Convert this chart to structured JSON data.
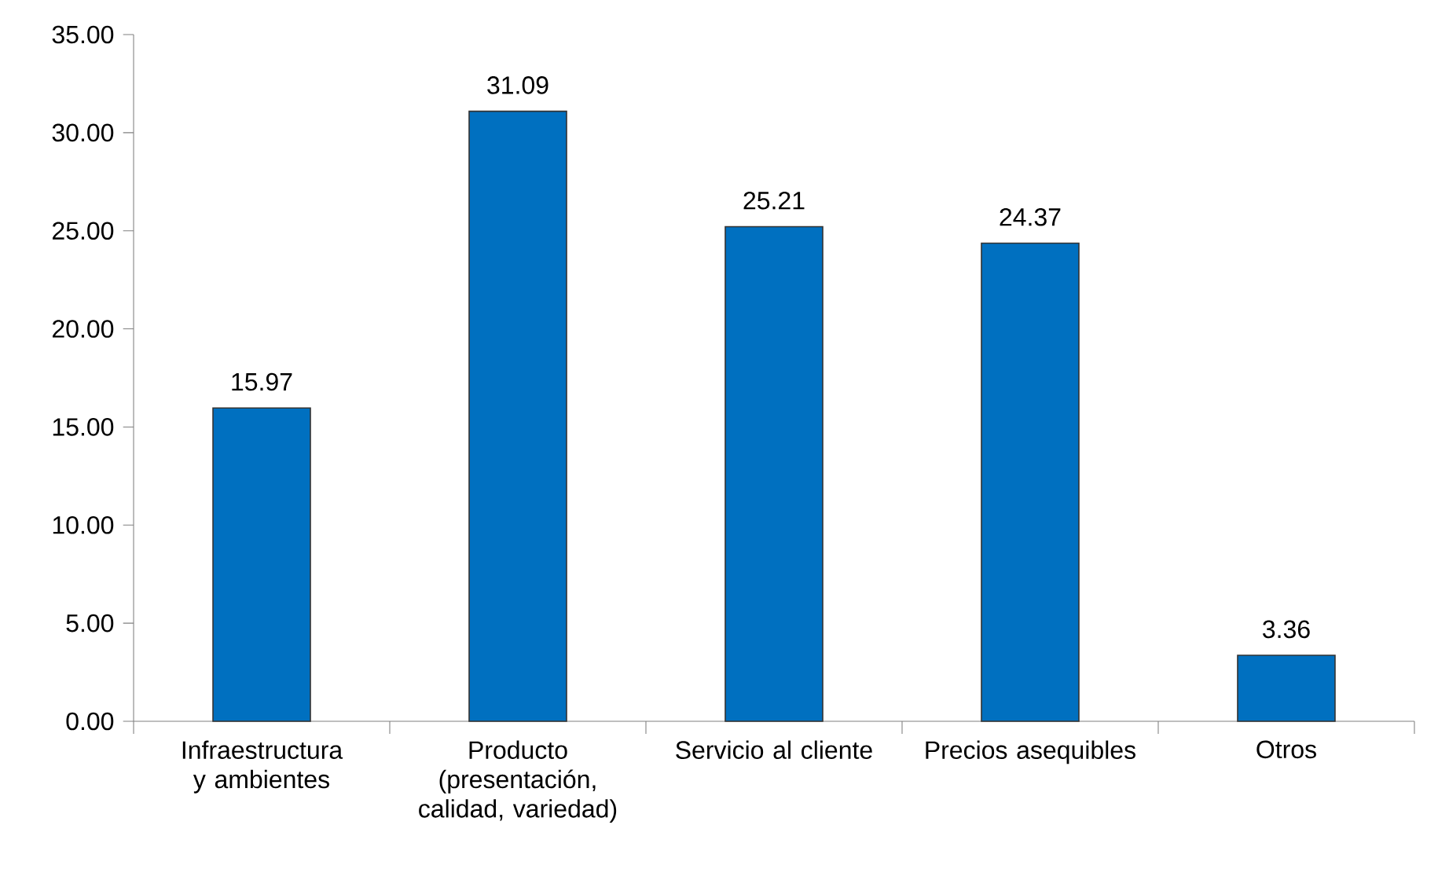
{
  "chart_data": {
    "type": "bar",
    "categories": [
      "Infraestructura y ambientes",
      "Producto (presentación, calidad, variedad)",
      "Servicio al cliente",
      "Precios asequibles",
      "Otros"
    ],
    "values": [
      15.97,
      31.09,
      25.21,
      24.37,
      3.36
    ],
    "color": "#0070c0",
    "ylim": [
      0,
      35
    ],
    "yticks": [
      {
        "value": 0,
        "label": "0.00"
      },
      {
        "value": 5,
        "label": "5.00"
      },
      {
        "value": 10,
        "label": "10.00"
      },
      {
        "value": 15,
        "label": "15.00"
      },
      {
        "value": 20,
        "label": "20.00"
      },
      {
        "value": 25,
        "label": "25.00"
      },
      {
        "value": 30,
        "label": "30.00"
      },
      {
        "value": 35,
        "label": "35.00"
      }
    ],
    "data_labels": true,
    "grid": false
  }
}
